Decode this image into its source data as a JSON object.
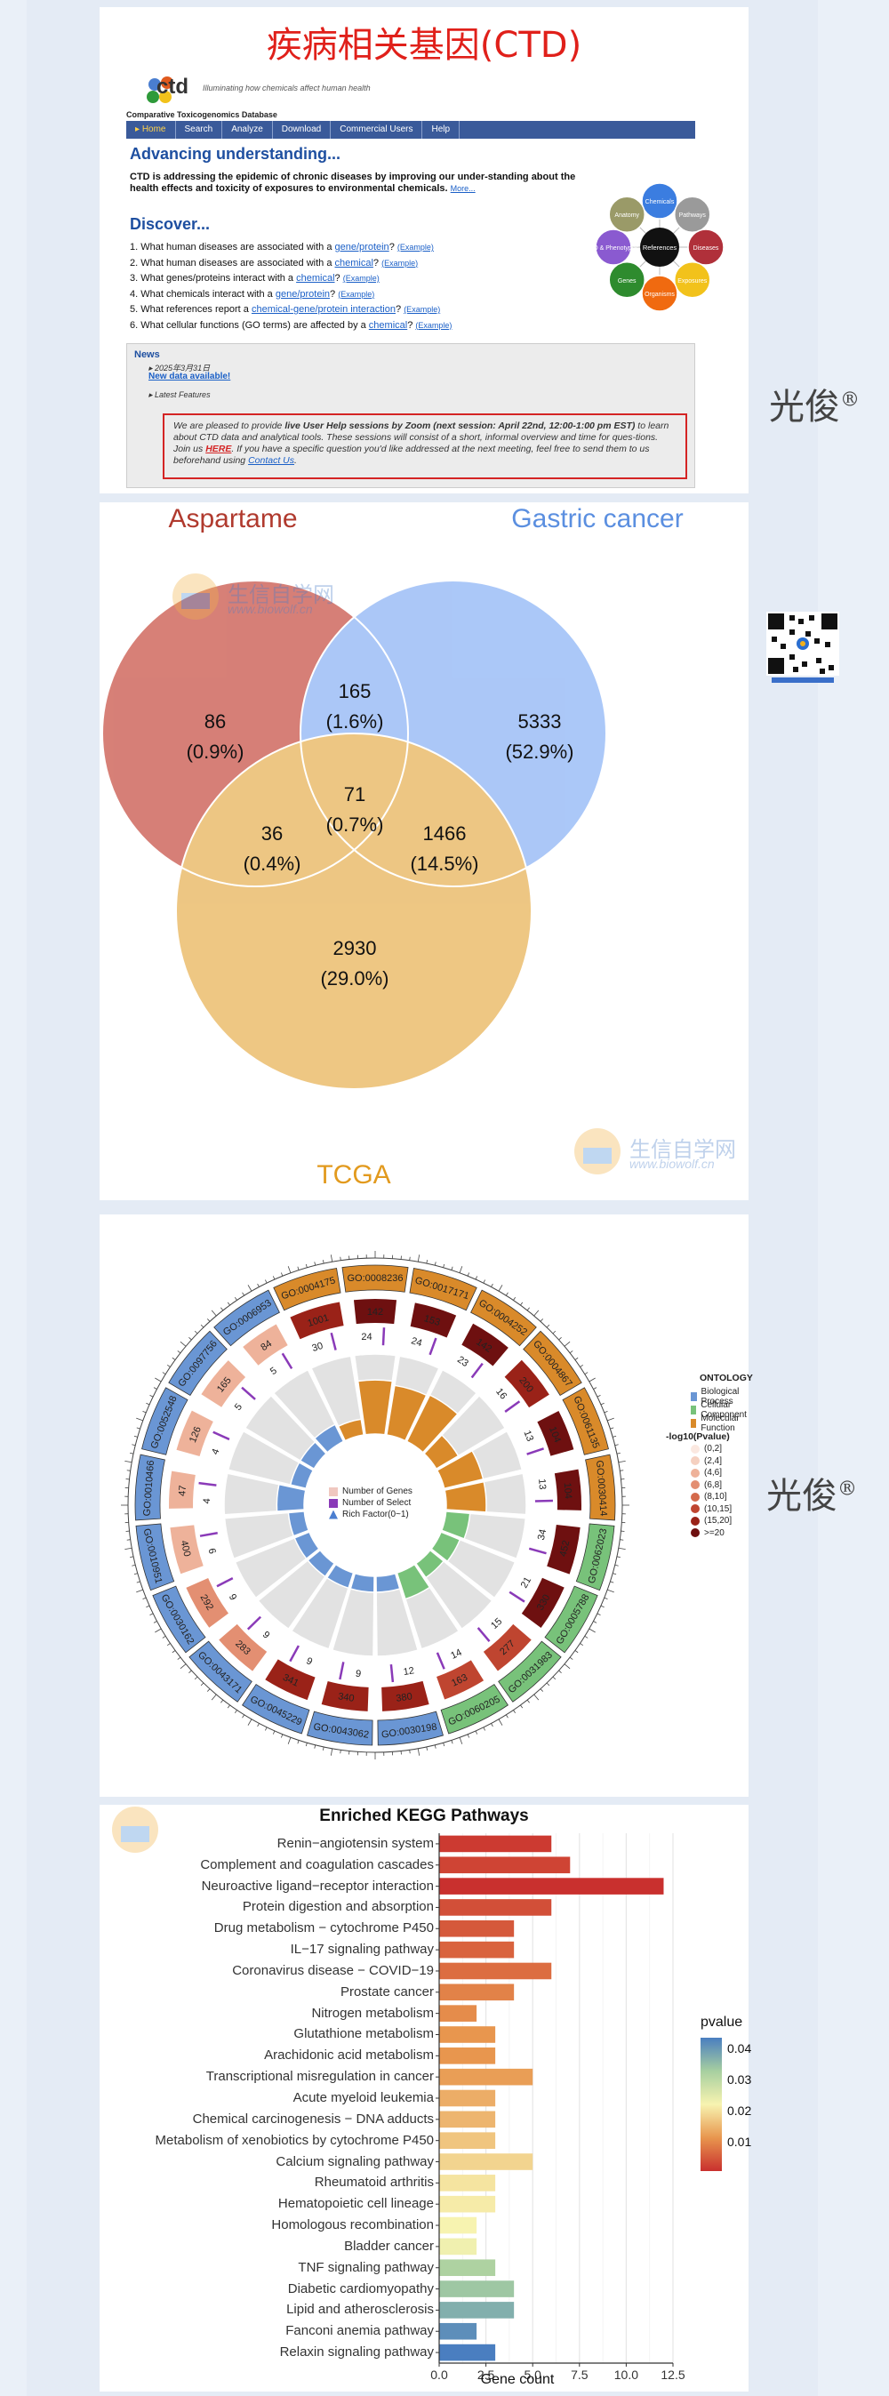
{
  "watermark": {
    "text": "光俊",
    "reg": "®"
  },
  "panel1": {
    "title": "疾病相关基因(CTD)",
    "logo_word": "ctd",
    "tagline": "Illuminating how chemicals affect human health",
    "db_name": "Comparative Toxicogenomics Database",
    "nav": [
      "Home",
      "Search",
      "Analyze",
      "Download",
      "Commercial Users",
      "Help"
    ],
    "advancing": "Advancing understanding...",
    "intro_bold": "CTD is addressing the epidemic of chronic diseases by improving our under-standing about the health effects and toxicity of exposures to environmental chemicals.",
    "intro_more": "More...",
    "discover": "Discover...",
    "questions": [
      {
        "pre": "1. What human diseases are associated with a ",
        "link": "gene/protein",
        "post": "?",
        "ex": "(Example)"
      },
      {
        "pre": "2. What human diseases are associated with a ",
        "link": "chemical",
        "post": "?",
        "ex": "(Example)"
      },
      {
        "pre": "3. What genes/proteins interact with a ",
        "link": "chemical",
        "post": "?",
        "ex": "(Example)"
      },
      {
        "pre": "4. What chemicals interact with a ",
        "link": "gene/protein",
        "post": "?",
        "ex": "(Example)"
      },
      {
        "pre": "5. What references report a ",
        "link": "chemical-gene/protein interaction",
        "post": "?",
        "ex": "(Example)"
      },
      {
        "pre": "6. What cellular functions (GO terms) are affected by a ",
        "link": "chemical",
        "post": "?",
        "ex": "(Example)"
      }
    ],
    "wheel": {
      "center": "References",
      "nodes": [
        {
          "label": "Chemicals",
          "color": "#3b7de0"
        },
        {
          "label": "Pathways",
          "color": "#9a9a9a"
        },
        {
          "label": "Diseases",
          "color": "#b0303a"
        },
        {
          "label": "Exposures",
          "color": "#f2c21b"
        },
        {
          "label": "Organisms",
          "color": "#f06a10"
        },
        {
          "label": "Genes",
          "color": "#2e8b2e"
        },
        {
          "label": "GO & Phenotypes",
          "color": "#8a5ad0"
        },
        {
          "label": "Anatomy",
          "color": "#9a9a68"
        }
      ]
    },
    "news": {
      "heading": "News",
      "date": "2025年3月31日",
      "new_data": "New data available!",
      "latest": "Latest Features",
      "msg_pre": "We are pleased to provide ",
      "msg_bold": "live User Help sessions by Zoom (next session: April 22nd, 12:00-1:00 pm EST)",
      "msg_mid": " to learn about CTD data and analytical tools. These sessions will consist of a short, informal overview and time for ques-tions. Join us ",
      "msg_here": "HERE",
      "msg_post": ". If you have a specific question you'd like addressed at the next meeting, feel free to send them to us beforehand using ",
      "msg_contact": "Contact Us",
      "msg_end": "."
    }
  },
  "venn": {
    "labels": [
      {
        "text": "Aspartame",
        "color": "#b03a2e"
      },
      {
        "text": "Gastric cancer",
        "color": "#5b8fe0"
      },
      {
        "text": "TCGA",
        "color": "#e29a1e"
      }
    ],
    "regions": [
      {
        "count": "86",
        "pct": "(0.9%)"
      },
      {
        "count": "165",
        "pct": "(1.6%)"
      },
      {
        "count": "5333",
        "pct": "(52.9%)"
      },
      {
        "count": "71",
        "pct": "(0.7%)"
      },
      {
        "count": "36",
        "pct": "(0.4%)"
      },
      {
        "count": "1466",
        "pct": "(14.5%)"
      },
      {
        "count": "2930",
        "pct": "(29.0%)"
      }
    ],
    "site_watermark": {
      "cn": "生信自学网",
      "url": "www.biowolf.cn"
    }
  },
  "circos": {
    "legend_inner": [
      "Number of Genes",
      "Number of Select",
      "Rich Factor(0~1)"
    ],
    "ontology_title": "ONTOLOGY",
    "ontology": [
      {
        "label": "Biological Process",
        "color": "#6a96d4"
      },
      {
        "label": "Cellular Component",
        "color": "#78c27a"
      },
      {
        "label": "Molecular Function",
        "color": "#d98a2a"
      }
    ],
    "pval_title": "-log10(Pvalue)",
    "pval_bins": [
      {
        "label": "(0,2]",
        "color": "#fbe8e0"
      },
      {
        "label": "(2,4]",
        "color": "#f5d0c0"
      },
      {
        "label": "(4,6]",
        "color": "#eeb29a"
      },
      {
        "label": "(6,8]",
        "color": "#e38f72"
      },
      {
        "label": "(8,10]",
        "color": "#d46a4c"
      },
      {
        "label": "(10,15]",
        "color": "#bf4530"
      },
      {
        "label": "(15,20]",
        "color": "#9a2218"
      },
      {
        "label": ">=20",
        "color": "#6e1010"
      }
    ],
    "terms": [
      {
        "id": "GO:0004175",
        "ont": "MF",
        "count": "1001",
        "sel": "30",
        "p": 6
      },
      {
        "id": "GO:0008236",
        "ont": "MF",
        "count": "142",
        "sel": "24",
        "p": 7
      },
      {
        "id": "GO:0017171",
        "ont": "MF",
        "count": "153",
        "sel": "24",
        "p": 7
      },
      {
        "id": "GO:0004252",
        "ont": "MF",
        "count": "142",
        "sel": "23",
        "p": 7
      },
      {
        "id": "GO:0004867",
        "ont": "MF",
        "count": "200",
        "sel": "16",
        "p": 6
      },
      {
        "id": "GO:0061135",
        "ont": "MF",
        "count": "104",
        "sel": "13",
        "p": 7
      },
      {
        "id": "GO:0030414",
        "ont": "MF",
        "count": "104",
        "sel": "13",
        "p": 7
      },
      {
        "id": "GO:0062023",
        "ont": "CC",
        "count": "452",
        "sel": "34",
        "p": 7
      },
      {
        "id": "GO:0005788",
        "ont": "CC",
        "count": "330",
        "sel": "21",
        "p": 7
      },
      {
        "id": "GO:0031983",
        "ont": "CC",
        "count": "277",
        "sel": "15",
        "p": 5
      },
      {
        "id": "GO:0060205",
        "ont": "CC",
        "count": "163",
        "sel": "14",
        "p": 5
      },
      {
        "id": "GO:0030198",
        "ont": "BP",
        "count": "380",
        "sel": "12",
        "p": 6
      },
      {
        "id": "GO:0043062",
        "ont": "BP",
        "count": "340",
        "sel": "9",
        "p": 6
      },
      {
        "id": "GO:0045229",
        "ont": "BP",
        "count": "341",
        "sel": "9",
        "p": 6
      },
      {
        "id": "GO:0043171",
        "ont": "BP",
        "count": "283",
        "sel": "9",
        "p": 3
      },
      {
        "id": "GO:0030162",
        "ont": "BP",
        "count": "292",
        "sel": "9",
        "p": 3
      },
      {
        "id": "GO:0010951",
        "ont": "BP",
        "count": "400",
        "sel": "6",
        "p": 2
      },
      {
        "id": "GO:0010466",
        "ont": "BP",
        "count": "47",
        "sel": "4",
        "p": 2
      },
      {
        "id": "GO:0052548",
        "ont": "BP",
        "count": "126",
        "sel": "4",
        "p": 2
      },
      {
        "id": "GO:0097756",
        "ont": "BP",
        "count": "165",
        "sel": "5",
        "p": 2
      },
      {
        "id": "GO:0006953",
        "ont": "BP",
        "count": "84",
        "sel": "5",
        "p": 2
      }
    ]
  },
  "chart_data": {
    "type": "bar",
    "title": "Enriched KEGG Pathways",
    "xlabel": "Gene count",
    "xlim": [
      0,
      12.5
    ],
    "xticks": [
      "0.0",
      "2.5",
      "5.0",
      "7.5",
      "10.0",
      "12.5"
    ],
    "legend_title": "pvalue",
    "legend_ticks": [
      "0.04",
      "0.03",
      "0.02",
      "0.01"
    ],
    "categories": [
      "Renin−angiotensin system",
      "Complement and coagulation cascades",
      "Neuroactive ligand−receptor interaction",
      "Protein digestion and absorption",
      "Drug metabolism − cytochrome P450",
      "IL−17 signaling pathway",
      "Coronavirus disease − COVID−19",
      "Prostate cancer",
      "Nitrogen metabolism",
      "Glutathione metabolism",
      "Arachidonic acid metabolism",
      "Transcriptional misregulation in cancer",
      "Acute myeloid leukemia",
      "Chemical carcinogenesis − DNA adducts",
      "Metabolism of xenobiotics by cytochrome P450",
      "Calcium signaling pathway",
      "Rheumatoid arthritis",
      "Hematopoietic cell lineage",
      "Homologous recombination",
      "Bladder cancer",
      "TNF signaling pathway",
      "Diabetic cardiomyopathy",
      "Lipid and atherosclerosis",
      "Fanconi anemia pathway",
      "Relaxin signaling pathway"
    ],
    "values": [
      6,
      7,
      12,
      6,
      4,
      4,
      6,
      4,
      2,
      3,
      3,
      5,
      3,
      3,
      3,
      5,
      3,
      3,
      2,
      2,
      3,
      4,
      4,
      2,
      3
    ],
    "pvalues": [
      0.004,
      0.005,
      0.003,
      0.006,
      0.007,
      0.008,
      0.009,
      0.011,
      0.012,
      0.013,
      0.013,
      0.014,
      0.016,
      0.017,
      0.019,
      0.021,
      0.023,
      0.024,
      0.025,
      0.026,
      0.036,
      0.038,
      0.041,
      0.045,
      0.047
    ]
  }
}
